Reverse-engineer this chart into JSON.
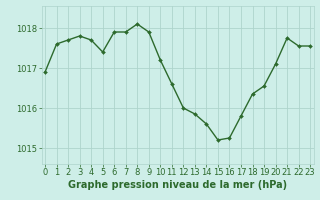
{
  "x": [
    0,
    1,
    2,
    3,
    4,
    5,
    6,
    7,
    8,
    9,
    10,
    11,
    12,
    13,
    14,
    15,
    16,
    17,
    18,
    19,
    20,
    21,
    22,
    23
  ],
  "y": [
    1016.9,
    1017.6,
    1017.7,
    1017.8,
    1017.7,
    1017.4,
    1017.9,
    1017.9,
    1018.1,
    1017.9,
    1017.2,
    1016.6,
    1016.0,
    1015.85,
    1015.6,
    1015.2,
    1015.25,
    1015.8,
    1016.35,
    1016.55,
    1017.1,
    1017.75,
    1017.55,
    1017.55
  ],
  "line_color": "#2d6a2d",
  "marker": "D",
  "marker_size": 2.0,
  "linewidth": 1.0,
  "bg_color": "#ceeee8",
  "grid_color": "#aed4cc",
  "xlabel": "Graphe pression niveau de la mer (hPa)",
  "xlabel_fontsize": 7,
  "tick_color": "#2d6a2d",
  "tick_fontsize": 6,
  "yticks": [
    1015,
    1016,
    1017,
    1018
  ],
  "xticks": [
    0,
    1,
    2,
    3,
    4,
    5,
    6,
    7,
    8,
    9,
    10,
    11,
    12,
    13,
    14,
    15,
    16,
    17,
    18,
    19,
    20,
    21,
    22,
    23
  ],
  "ylim": [
    1014.6,
    1018.55
  ],
  "xlim": [
    -0.3,
    23.3
  ]
}
